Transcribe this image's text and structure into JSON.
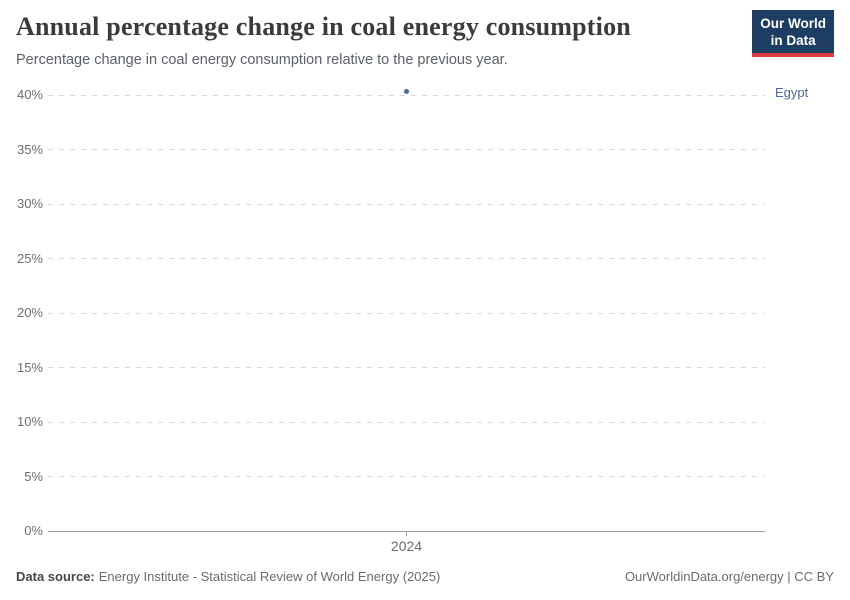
{
  "header": {
    "title": "Annual percentage change in coal energy consumption",
    "subtitle": "Percentage change in coal energy consumption relative to the previous year.",
    "logo": {
      "line1": "Our World",
      "line2": "in Data",
      "bg_color": "#1d3d63",
      "accent_color": "#d93a3f"
    }
  },
  "chart_data": {
    "type": "scatter",
    "title": "Annual percentage change in coal energy consumption",
    "subtitle": "Percentage change in coal energy consumption relative to the previous year.",
    "series": [
      {
        "name": "Egypt",
        "color": "#4c6a9c",
        "points": [
          {
            "x": 2024,
            "y": 40.3
          }
        ]
      }
    ],
    "x_domain": [
      2023.5,
      2024.5
    ],
    "xticks": [
      "2024"
    ],
    "ylim": [
      0,
      40
    ],
    "yticks": [
      0,
      5,
      10,
      15,
      20,
      25,
      30,
      35,
      40
    ],
    "ytick_suffix": "%",
    "grid": true,
    "legend_position": "right-entity-label"
  },
  "footer": {
    "source_label": "Data source:",
    "source_text": "Energy Institute - Statistical Review of World Energy (2025)",
    "right_text": "OurWorldinData.org/energy | CC BY"
  }
}
